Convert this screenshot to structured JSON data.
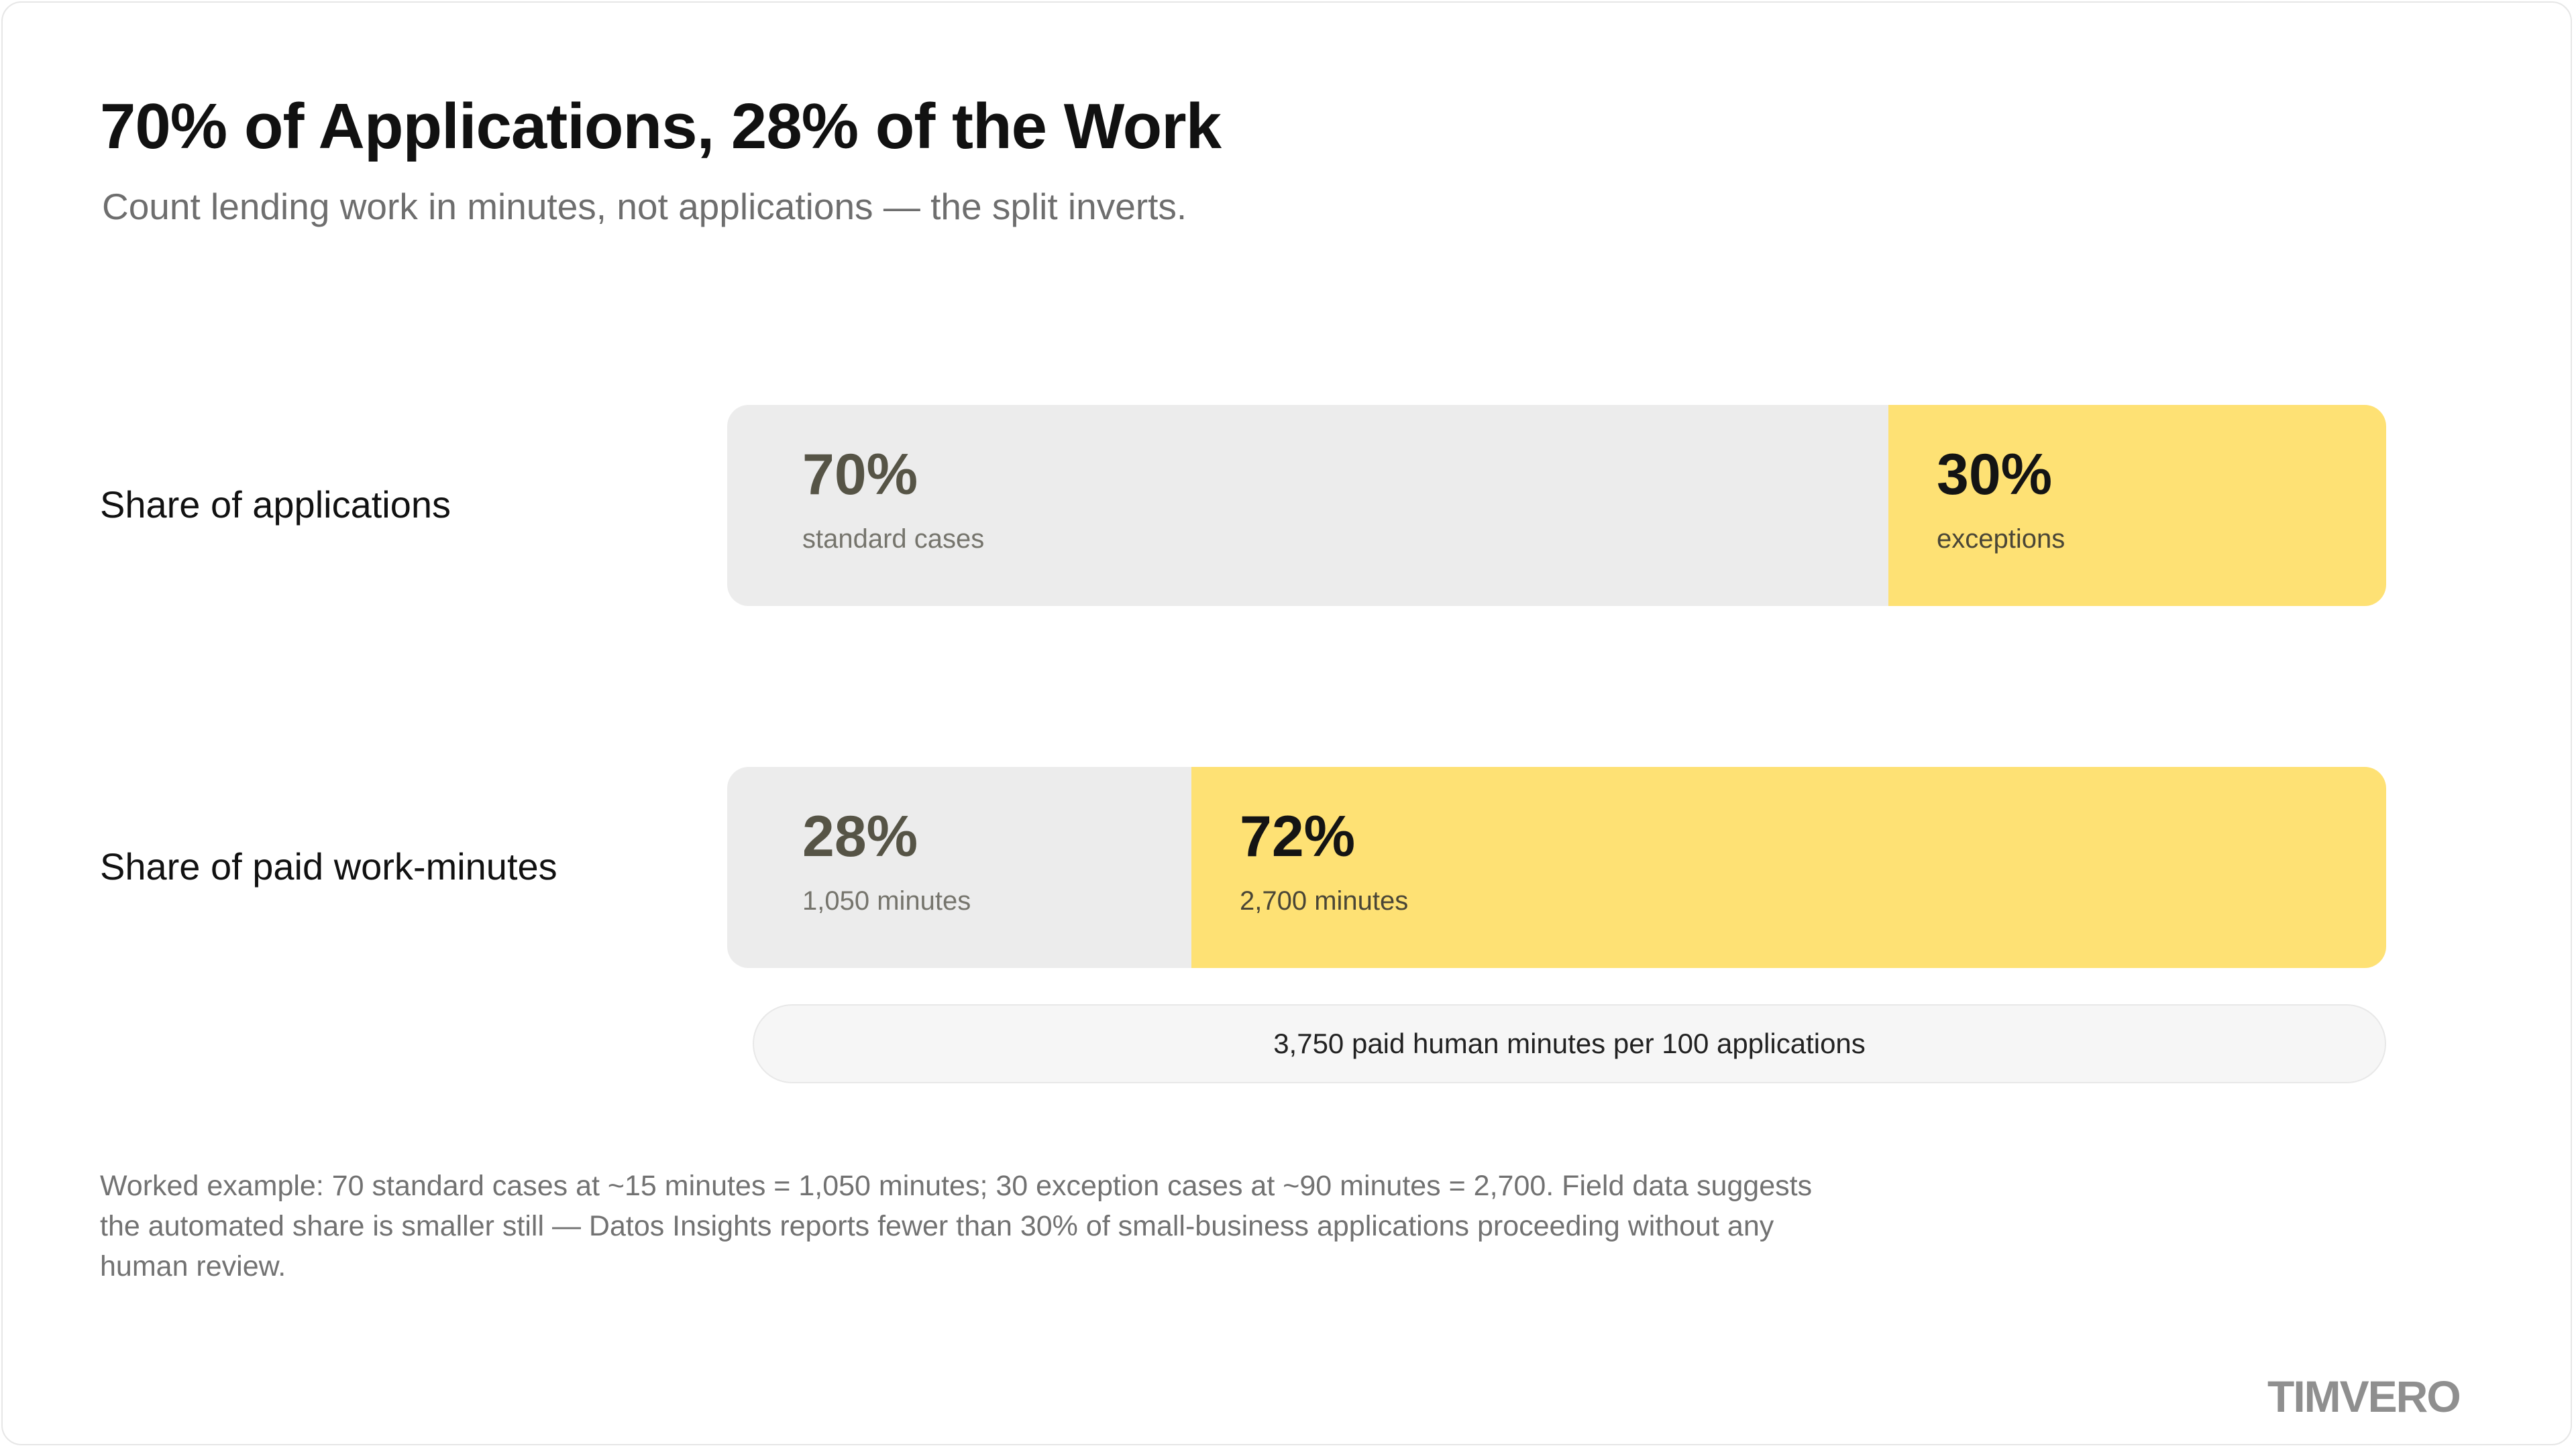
{
  "header": {
    "title": "70% of Applications, 28% of the Work",
    "subtitle": "Count lending work in minutes, not applications — the split inverts."
  },
  "chart_data": {
    "type": "bar",
    "orientation": "horizontal",
    "stacked": "100%",
    "categories": [
      "Share of applications",
      "Share of paid work-minutes"
    ],
    "series": [
      {
        "segment_labels": [
          "standard cases",
          "1,050 minutes"
        ],
        "values": [
          70,
          28
        ],
        "value_labels": [
          "70%",
          "28%"
        ],
        "color": "#ececec"
      },
      {
        "segment_labels": [
          "exceptions",
          "2,700 minutes"
        ],
        "values": [
          30,
          72
        ],
        "value_labels": [
          "30%",
          "72%"
        ],
        "color": "#fee174"
      }
    ],
    "xlim": [
      0,
      100
    ],
    "grid": false,
    "legend": "none",
    "total_note": "3,750 paid human minutes per 100 applications"
  },
  "footnote": "Worked example: 70 standard cases at ~15 minutes = 1,050 minutes; 30 exception cases at ~90 minutes = 2,700. Field data suggests the automated share is smaller still — Datos Insights reports fewer than 30% of small-business applications proceeding without any human review.",
  "logo": {
    "text": "TIMVERO",
    "color": "#8f8f8f"
  }
}
